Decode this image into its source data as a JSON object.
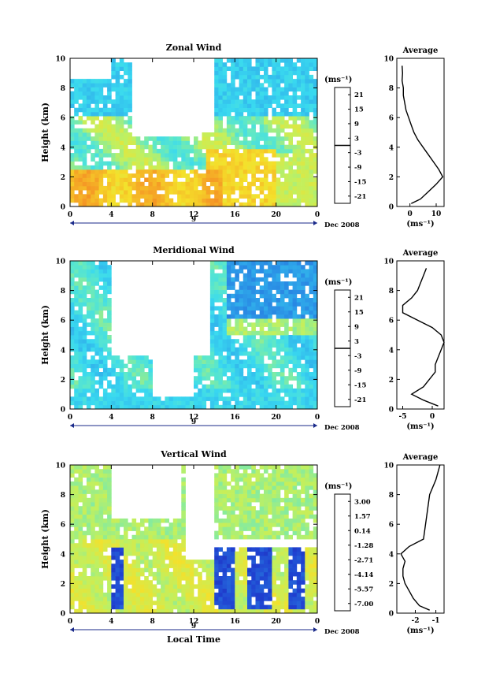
{
  "chart_data": [
    {
      "type": "heatmap",
      "title": "Zonal Wind",
      "ylabel": "Height (km)",
      "ylim": [
        0,
        10
      ],
      "yticks": [
        "0",
        "2",
        "4",
        "6",
        "8",
        "10"
      ],
      "xticks": [
        "0",
        "4",
        "8",
        "12",
        "16",
        "20",
        "0"
      ],
      "date_marker": "9",
      "date_label": "Dec 2008",
      "colorbar": {
        "unit": "(ms⁻¹)",
        "range": [
          -24,
          24
        ],
        "ticks": [
          "21",
          "15",
          "9",
          "3",
          "-3",
          "-9",
          "-15",
          "-21"
        ],
        "zero_line": 0
      },
      "profile": {
        "title": "Average",
        "xlabel": "(ms⁻¹)",
        "xticks": [
          "0",
          "10"
        ],
        "xlim": [
          -5,
          13
        ],
        "yticks": [
          "0",
          "2",
          "4",
          "6",
          "8",
          "10"
        ],
        "height_km": [
          0.2,
          0.5,
          1.0,
          1.5,
          2.0,
          2.5,
          3.0,
          3.5,
          4.0,
          4.5,
          5.0,
          5.5,
          6.0,
          6.5,
          7.0,
          7.5,
          8.0,
          8.5,
          9.0,
          9.5
        ],
        "wind_ms": [
          0.5,
          4,
          7,
          10,
          12.5,
          11,
          9,
          7,
          5,
          3,
          1.5,
          0.5,
          -0.5,
          -1.5,
          -2,
          -2.5,
          -2.5,
          -3,
          -2.8,
          -3
        ]
      }
    },
    {
      "type": "heatmap",
      "title": "Meridional Wind",
      "ylabel": "Height (km)",
      "ylim": [
        0,
        10
      ],
      "yticks": [
        "0",
        "2",
        "4",
        "6",
        "8",
        "10"
      ],
      "xticks": [
        "0",
        "4",
        "8",
        "12",
        "16",
        "20",
        "0"
      ],
      "date_marker": "9",
      "date_label": "Dec 2008",
      "colorbar": {
        "unit": "(ms⁻¹)",
        "range": [
          -24,
          24
        ],
        "ticks": [
          "21",
          "15",
          "9",
          "3",
          "-3",
          "-9",
          "-15",
          "-21"
        ],
        "zero_line": 0
      },
      "profile": {
        "title": "Average",
        "xlabel": "(ms⁻¹)",
        "xticks": [
          "-5",
          "0"
        ],
        "xlim": [
          -6,
          2
        ],
        "yticks": [
          "0",
          "2",
          "4",
          "6",
          "8",
          "10"
        ],
        "height_km": [
          0.2,
          0.6,
          1.0,
          1.5,
          2.0,
          2.5,
          3.0,
          3.5,
          4.0,
          4.5,
          5.0,
          5.5,
          6.0,
          6.5,
          7.0,
          7.5,
          8.0,
          8.5,
          9.0,
          9.5
        ],
        "wind_ms": [
          1.0,
          -1.5,
          -3.5,
          -1.5,
          -0.5,
          0.5,
          0.5,
          1.0,
          1.5,
          2.0,
          1.5,
          0,
          -2.5,
          -5,
          -5,
          -3.5,
          -2.5,
          -2.0,
          -1.5,
          -1.0
        ]
      }
    },
    {
      "type": "heatmap",
      "title": "Vertical Wind",
      "ylabel": "Height (km)",
      "xlabel": "Local Time",
      "ylim": [
        0,
        10
      ],
      "yticks": [
        "0",
        "2",
        "4",
        "6",
        "8",
        "10"
      ],
      "xticks": [
        "0",
        "4",
        "8",
        "12",
        "16",
        "20",
        "0"
      ],
      "date_marker": "9",
      "date_label": "Dec 2008",
      "colorbar": {
        "unit": "(ms⁻¹)",
        "range": [
          -8.5,
          4.4
        ],
        "ticks": [
          "3.00",
          "1.57",
          "0.14",
          "-1.28",
          "-2.71",
          "-4.14",
          "-5.57",
          "-7.00"
        ]
      },
      "profile": {
        "title": "Average",
        "xlabel": "(ms⁻¹)",
        "xticks": [
          "-2",
          "-1"
        ],
        "xlim": [
          -2.9,
          -0.6
        ],
        "yticks": [
          "0",
          "2",
          "4",
          "6",
          "8",
          "10"
        ],
        "height_km": [
          0.2,
          0.5,
          1.0,
          1.5,
          2.0,
          2.5,
          3.0,
          3.5,
          4.0,
          4.5,
          5.0,
          6.0,
          7.0,
          8.0,
          9.0,
          9.5,
          10.0
        ],
        "wind_ms": [
          -1.3,
          -1.8,
          -2.1,
          -2.3,
          -2.5,
          -2.6,
          -2.6,
          -2.5,
          -2.7,
          -2.3,
          -1.6,
          -1.5,
          -1.4,
          -1.3,
          -1.0,
          -0.9,
          -0.8
        ]
      }
    }
  ]
}
